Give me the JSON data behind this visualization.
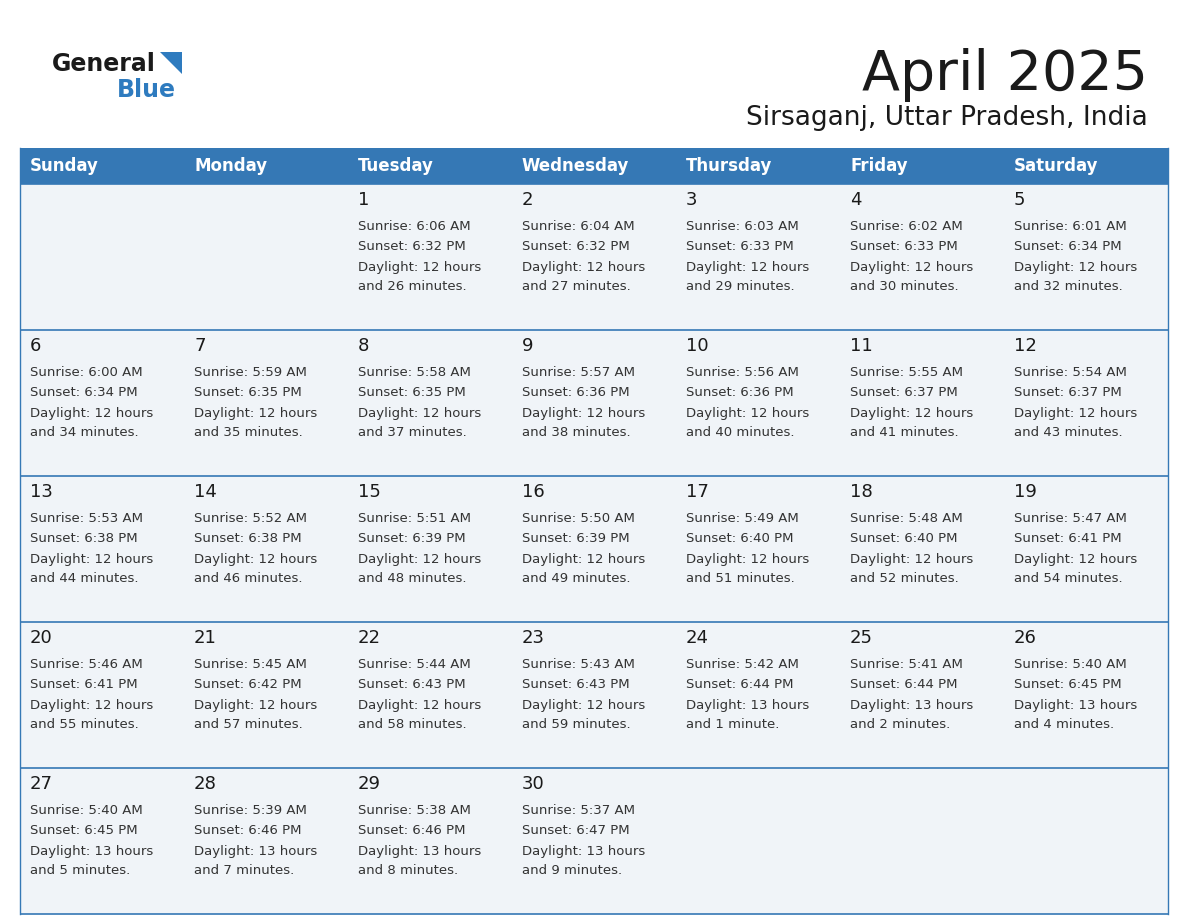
{
  "title": "April 2025",
  "subtitle": "Sirsaganj, Uttar Pradesh, India",
  "header_bg_color": "#3578b5",
  "header_text_color": "#ffffff",
  "cell_bg_color": "#f0f4f8",
  "cell_bg_white": "#ffffff",
  "border_color": "#3578b5",
  "text_color": "#333333",
  "day_number_color": "#1a1a1a",
  "days_of_week": [
    "Sunday",
    "Monday",
    "Tuesday",
    "Wednesday",
    "Thursday",
    "Friday",
    "Saturday"
  ],
  "logo_general_color": "#1a1a1a",
  "logo_blue_color": "#2e7bbf",
  "weeks": [
    [
      {
        "day": "",
        "sunrise": "",
        "sunset": "",
        "daylight": ""
      },
      {
        "day": "",
        "sunrise": "",
        "sunset": "",
        "daylight": ""
      },
      {
        "day": "1",
        "sunrise": "6:06 AM",
        "sunset": "6:32 PM",
        "daylight": "12 hours and 26 minutes."
      },
      {
        "day": "2",
        "sunrise": "6:04 AM",
        "sunset": "6:32 PM",
        "daylight": "12 hours and 27 minutes."
      },
      {
        "day": "3",
        "sunrise": "6:03 AM",
        "sunset": "6:33 PM",
        "daylight": "12 hours and 29 minutes."
      },
      {
        "day": "4",
        "sunrise": "6:02 AM",
        "sunset": "6:33 PM",
        "daylight": "12 hours and 30 minutes."
      },
      {
        "day": "5",
        "sunrise": "6:01 AM",
        "sunset": "6:34 PM",
        "daylight": "12 hours and 32 minutes."
      }
    ],
    [
      {
        "day": "6",
        "sunrise": "6:00 AM",
        "sunset": "6:34 PM",
        "daylight": "12 hours and 34 minutes."
      },
      {
        "day": "7",
        "sunrise": "5:59 AM",
        "sunset": "6:35 PM",
        "daylight": "12 hours and 35 minutes."
      },
      {
        "day": "8",
        "sunrise": "5:58 AM",
        "sunset": "6:35 PM",
        "daylight": "12 hours and 37 minutes."
      },
      {
        "day": "9",
        "sunrise": "5:57 AM",
        "sunset": "6:36 PM",
        "daylight": "12 hours and 38 minutes."
      },
      {
        "day": "10",
        "sunrise": "5:56 AM",
        "sunset": "6:36 PM",
        "daylight": "12 hours and 40 minutes."
      },
      {
        "day": "11",
        "sunrise": "5:55 AM",
        "sunset": "6:37 PM",
        "daylight": "12 hours and 41 minutes."
      },
      {
        "day": "12",
        "sunrise": "5:54 AM",
        "sunset": "6:37 PM",
        "daylight": "12 hours and 43 minutes."
      }
    ],
    [
      {
        "day": "13",
        "sunrise": "5:53 AM",
        "sunset": "6:38 PM",
        "daylight": "12 hours and 44 minutes."
      },
      {
        "day": "14",
        "sunrise": "5:52 AM",
        "sunset": "6:38 PM",
        "daylight": "12 hours and 46 minutes."
      },
      {
        "day": "15",
        "sunrise": "5:51 AM",
        "sunset": "6:39 PM",
        "daylight": "12 hours and 48 minutes."
      },
      {
        "day": "16",
        "sunrise": "5:50 AM",
        "sunset": "6:39 PM",
        "daylight": "12 hours and 49 minutes."
      },
      {
        "day": "17",
        "sunrise": "5:49 AM",
        "sunset": "6:40 PM",
        "daylight": "12 hours and 51 minutes."
      },
      {
        "day": "18",
        "sunrise": "5:48 AM",
        "sunset": "6:40 PM",
        "daylight": "12 hours and 52 minutes."
      },
      {
        "day": "19",
        "sunrise": "5:47 AM",
        "sunset": "6:41 PM",
        "daylight": "12 hours and 54 minutes."
      }
    ],
    [
      {
        "day": "20",
        "sunrise": "5:46 AM",
        "sunset": "6:41 PM",
        "daylight": "12 hours and 55 minutes."
      },
      {
        "day": "21",
        "sunrise": "5:45 AM",
        "sunset": "6:42 PM",
        "daylight": "12 hours and 57 minutes."
      },
      {
        "day": "22",
        "sunrise": "5:44 AM",
        "sunset": "6:43 PM",
        "daylight": "12 hours and 58 minutes."
      },
      {
        "day": "23",
        "sunrise": "5:43 AM",
        "sunset": "6:43 PM",
        "daylight": "12 hours and 59 minutes."
      },
      {
        "day": "24",
        "sunrise": "5:42 AM",
        "sunset": "6:44 PM",
        "daylight": "13 hours and 1 minute."
      },
      {
        "day": "25",
        "sunrise": "5:41 AM",
        "sunset": "6:44 PM",
        "daylight": "13 hours and 2 minutes."
      },
      {
        "day": "26",
        "sunrise": "5:40 AM",
        "sunset": "6:45 PM",
        "daylight": "13 hours and 4 minutes."
      }
    ],
    [
      {
        "day": "27",
        "sunrise": "5:40 AM",
        "sunset": "6:45 PM",
        "daylight": "13 hours and 5 minutes."
      },
      {
        "day": "28",
        "sunrise": "5:39 AM",
        "sunset": "6:46 PM",
        "daylight": "13 hours and 7 minutes."
      },
      {
        "day": "29",
        "sunrise": "5:38 AM",
        "sunset": "6:46 PM",
        "daylight": "13 hours and 8 minutes."
      },
      {
        "day": "30",
        "sunrise": "5:37 AM",
        "sunset": "6:47 PM",
        "daylight": "13 hours and 9 minutes."
      },
      {
        "day": "",
        "sunrise": "",
        "sunset": "",
        "daylight": ""
      },
      {
        "day": "",
        "sunrise": "",
        "sunset": "",
        "daylight": ""
      },
      {
        "day": "",
        "sunrise": "",
        "sunset": "",
        "daylight": ""
      }
    ]
  ]
}
